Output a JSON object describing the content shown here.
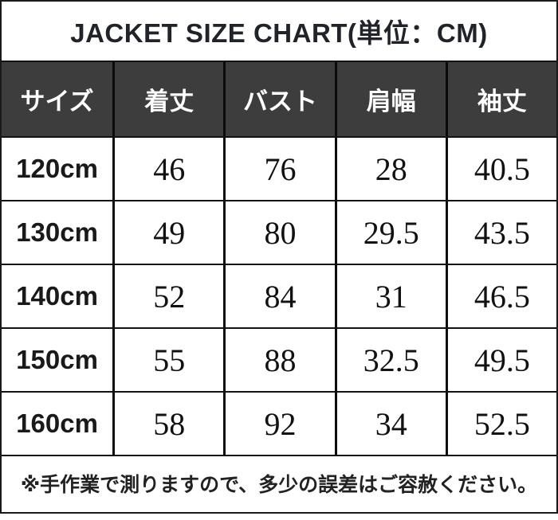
{
  "title": "JACKET SIZE CHART(単位：CM)",
  "table": {
    "columns": [
      "サイズ",
      "着丈",
      "バスト",
      "肩幅",
      "袖丈"
    ],
    "rows": [
      {
        "size": "120cm",
        "v0": "46",
        "v1": "76",
        "v2": "28",
        "v3": "40.5"
      },
      {
        "size": "130cm",
        "v0": "49",
        "v1": "80",
        "v2": "29.5",
        "v3": "43.5"
      },
      {
        "size": "140cm",
        "v0": "52",
        "v1": "84",
        "v2": "31",
        "v3": "46.5"
      },
      {
        "size": "150cm",
        "v0": "55",
        "v1": "88",
        "v2": "32.5",
        "v3": "49.5"
      },
      {
        "size": "160cm",
        "v0": "58",
        "v1": "92",
        "v2": "34",
        "v3": "52.5"
      }
    ]
  },
  "footer": {
    "note": "※手作業で測りますので、多少の誤差はご容赦ください。"
  },
  "colors": {
    "header_bg": "#3d3d3d",
    "header_text": "#ffffff",
    "border": "#121212",
    "body_text": "#1a1a1a",
    "background": "#ffffff"
  },
  "chart_data": {
    "type": "table",
    "title": "JACKET SIZE CHART(単位：CM)",
    "unit": "cm",
    "columns": [
      "サイズ",
      "着丈",
      "バスト",
      "肩幅",
      "袖丈"
    ],
    "categories": [
      "120cm",
      "130cm",
      "140cm",
      "150cm",
      "160cm"
    ],
    "series": [
      {
        "name": "着丈",
        "values": [
          46,
          49,
          52,
          55,
          58
        ]
      },
      {
        "name": "バスト",
        "values": [
          76,
          80,
          84,
          88,
          92
        ]
      },
      {
        "name": "肩幅",
        "values": [
          28,
          29.5,
          31,
          32.5,
          34
        ]
      },
      {
        "name": "袖丈",
        "values": [
          40.5,
          43.5,
          46.5,
          49.5,
          52.5
        ]
      }
    ],
    "note": "※手作業で測りますので、多少の誤差はご容赦ください。"
  }
}
